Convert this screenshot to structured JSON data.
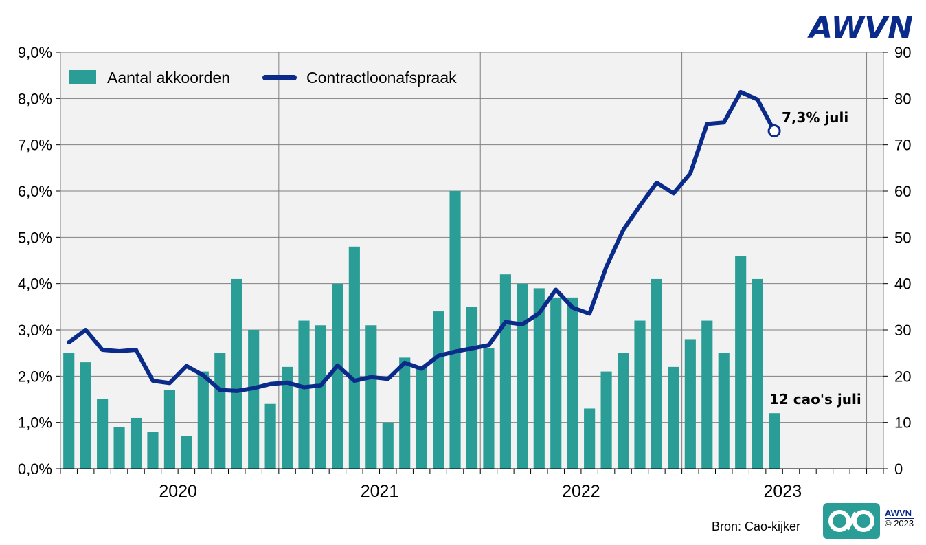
{
  "brand": {
    "logo_text": "AWVN",
    "small_logo_text": "AWVN",
    "copyright": "© 2023",
    "source": "Bron: Cao-kijker"
  },
  "colors": {
    "bar": "#2a9d96",
    "line": "#0a2b8a",
    "plot_bg": "#f2f2f2",
    "grid": "#7f7f7f",
    "logo": "#0a2b8a",
    "cao_logo": "#2a9d96"
  },
  "chart_data": {
    "type": "bar+line",
    "title": "",
    "legend": {
      "placement": "top-left",
      "entries": [
        "Aantal akkoorden",
        "Contractloonafspraak"
      ]
    },
    "x": {
      "months": 49,
      "start": "2019-12",
      "year_labels": [
        "2020",
        "2021",
        "2022",
        "2023"
      ],
      "max_months": 49
    },
    "y_left": {
      "ylim": [
        0,
        9
      ],
      "ticks": [
        "0,0%",
        "1,0%",
        "2,0%",
        "3,0%",
        "4,0%",
        "5,0%",
        "6,0%",
        "7,0%",
        "8,0%",
        "9,0%"
      ]
    },
    "y_right": {
      "ylim": [
        0,
        90
      ],
      "ticks": [
        "0",
        "10",
        "20",
        "30",
        "40",
        "50",
        "60",
        "70",
        "80",
        "90"
      ]
    },
    "series": [
      {
        "name": "Aantal akkoorden",
        "type": "bar",
        "axis": "right",
        "values": [
          25,
          23,
          15,
          9,
          11,
          8,
          17,
          7,
          21,
          25,
          41,
          30,
          14,
          22,
          32,
          31,
          40,
          48,
          31,
          10,
          24,
          22,
          34,
          60,
          35,
          26,
          42,
          40,
          39,
          37,
          37,
          13,
          21,
          25,
          32,
          41,
          22,
          28,
          32,
          25,
          46,
          41,
          12
        ]
      },
      {
        "name": "Contractloonafspraak",
        "type": "line",
        "axis": "left",
        "values": [
          2.73,
          3.0,
          2.57,
          2.54,
          2.57,
          1.9,
          1.85,
          2.22,
          2.02,
          1.7,
          1.68,
          1.74,
          1.83,
          1.86,
          1.76,
          1.8,
          2.23,
          1.9,
          1.98,
          1.94,
          2.29,
          2.16,
          2.44,
          2.53,
          2.6,
          2.67,
          3.17,
          3.12,
          3.36,
          3.87,
          3.48,
          3.35,
          4.36,
          5.15,
          5.68,
          6.18,
          5.95,
          6.38,
          7.45,
          7.48,
          8.14,
          7.98,
          7.3
        ]
      }
    ],
    "annotations": {
      "line_end": "7,3% juli",
      "bar_end": "12 cao's juli"
    }
  }
}
